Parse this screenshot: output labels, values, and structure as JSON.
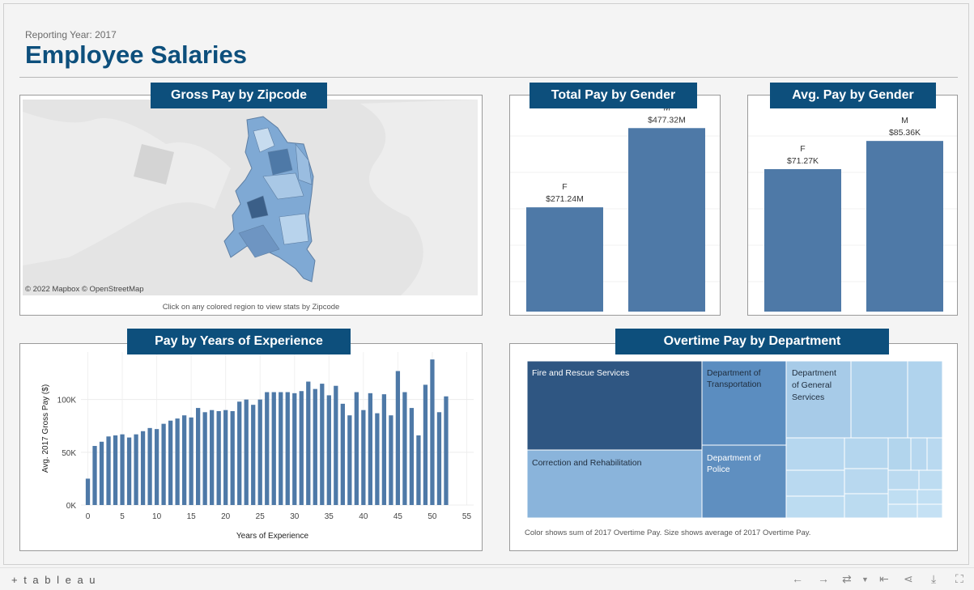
{
  "header": {
    "reporting_year": "Reporting Year: 2017",
    "title": "Employee Salaries"
  },
  "panels": {
    "map": {
      "title": "Gross Pay by Zipcode",
      "attribution": "© 2022 Mapbox  © OpenStreetMap",
      "caption": "Click on any colored region to view stats by Zipcode"
    },
    "total_pay": {
      "title": "Total Pay by Gender"
    },
    "avg_pay": {
      "title": "Avg. Pay by Gender"
    },
    "experience": {
      "title": "Pay by Years of Experience"
    },
    "overtime": {
      "title": "Overtime Pay by Department",
      "caption": "Color shows sum of 2017 Overtime Pay.  Size shows average of 2017 Overtime Pay."
    }
  },
  "chart_data": [
    {
      "type": "bar",
      "chart": "total-pay-by-gender",
      "categories": [
        "F",
        "M"
      ],
      "values": [
        271.24,
        477.32
      ],
      "labels": [
        "$271.24M",
        "$477.32M"
      ],
      "ylim": [
        0,
        520
      ],
      "color": "#4e79a7"
    },
    {
      "type": "bar",
      "chart": "avg-pay-by-gender",
      "categories": [
        "F",
        "M"
      ],
      "values": [
        71.27,
        85.36
      ],
      "labels": [
        "$71.27K",
        "$85.36K"
      ],
      "ylim": [
        0,
        100
      ],
      "color": "#4e79a7"
    },
    {
      "type": "bar",
      "chart": "pay-by-years-of-experience",
      "xlabel": "Years of Experience",
      "ylabel": "Avg. 2017 Gross Pay ($)",
      "x": [
        0,
        1,
        2,
        3,
        4,
        5,
        6,
        7,
        8,
        9,
        10,
        11,
        12,
        13,
        14,
        15,
        16,
        17,
        18,
        19,
        20,
        21,
        22,
        23,
        24,
        25,
        26,
        27,
        28,
        29,
        30,
        31,
        32,
        33,
        34,
        35,
        36,
        37,
        38,
        39,
        40,
        41,
        42,
        43,
        44,
        45,
        46,
        47,
        48,
        49,
        50,
        51,
        52
      ],
      "values": [
        25000,
        56000,
        60000,
        65000,
        66000,
        67000,
        64000,
        67000,
        70000,
        73000,
        72000,
        77000,
        80000,
        82000,
        85000,
        83000,
        92000,
        88000,
        90000,
        89000,
        90000,
        89000,
        98000,
        100000,
        95000,
        100000,
        107000,
        107000,
        107000,
        107000,
        106000,
        108000,
        117000,
        110000,
        115000,
        104000,
        113000,
        96000,
        85000,
        107000,
        90000,
        106000,
        87000,
        105000,
        85000,
        127000,
        107000,
        92000,
        66000,
        114000,
        138000,
        88000,
        103000
      ],
      "xticks": [
        0,
        5,
        10,
        15,
        20,
        25,
        30,
        35,
        40,
        45,
        50,
        55
      ],
      "yticks": [
        0,
        50000,
        100000
      ],
      "ytick_labels": [
        "0K",
        "50K",
        "100K"
      ],
      "ylim": [
        0,
        145000
      ],
      "xlim": [
        -1,
        56
      ],
      "color": "#4e79a7",
      "grid": true
    },
    {
      "type": "heatmap",
      "chart": "overtime-pay-by-department",
      "labeled_cells": [
        "Fire and Rescue Services",
        "Department of Transportation",
        "Department of General Services",
        "Correction and Rehabilitation",
        "Department of Police"
      ]
    }
  ],
  "footer": {
    "logo": "+ t a b l e a u"
  }
}
